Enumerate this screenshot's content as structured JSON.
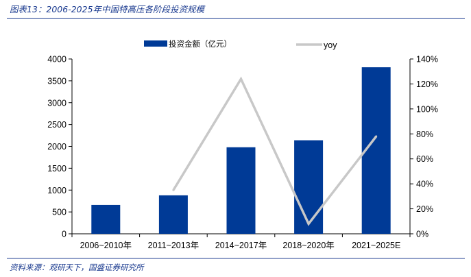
{
  "figure": {
    "title": "图表13：2006-2025年中国特高压各阶段投资规模",
    "source": "资料来源：观研天下，国盛证券研究所"
  },
  "colors": {
    "bar": "#003a96",
    "line": "#c8c8c8",
    "frame": "#1a3a8f"
  },
  "chart_data": {
    "type": "bar",
    "categories": [
      "2006~2010年",
      "2011~2013年",
      "2014~2017年",
      "2018~2020年",
      "2021~2025E"
    ],
    "series": [
      {
        "name": "投资金额（亿元）",
        "type": "bar",
        "axis": "left",
        "values": [
          660,
          880,
          1980,
          2140,
          3810
        ]
      },
      {
        "name": "yoy",
        "type": "line",
        "axis": "right",
        "values": [
          null,
          0.35,
          1.24,
          0.08,
          0.78
        ]
      }
    ],
    "y_left": {
      "min": 0,
      "max": 4000,
      "step": 500,
      "ticks": [
        "0",
        "500",
        "1000",
        "1500",
        "2000",
        "2500",
        "3000",
        "3500",
        "4000"
      ]
    },
    "y_right": {
      "min": 0,
      "max": 1.4,
      "step": 0.2,
      "ticks": [
        "0%",
        "20%",
        "40%",
        "60%",
        "80%",
        "100%",
        "120%",
        "140%"
      ]
    },
    "legend_position": "top-center",
    "grid": false
  }
}
